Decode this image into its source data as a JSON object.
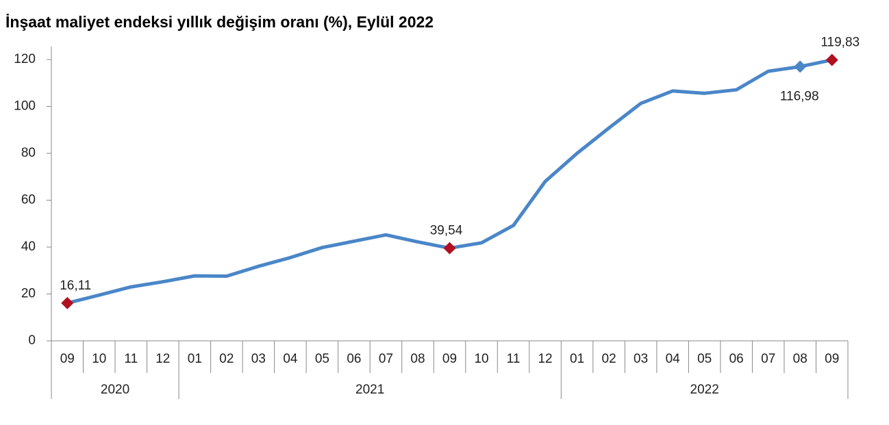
{
  "chart_data": {
    "type": "line",
    "title": "İnşaat maliyet endeksi yıllık değişim oranı (%), Eylül 2022",
    "categories": [
      "09",
      "10",
      "11",
      "12",
      "01",
      "02",
      "03",
      "04",
      "05",
      "06",
      "07",
      "08",
      "09",
      "10",
      "11",
      "12",
      "01",
      "02",
      "03",
      "04",
      "05",
      "06",
      "07",
      "08",
      "09"
    ],
    "groups": [
      "2020",
      "2021",
      "2022"
    ],
    "series": [
      {
        "name": "Yıllık değişim",
        "color": "#4a86c8",
        "values": [
          16.11,
          19.5,
          23,
          25.2,
          27.7,
          27.6,
          31.8,
          35.5,
          39.8,
          42.5,
          45.2,
          42.2,
          39.54,
          41.8,
          49.2,
          68,
          80,
          90.8,
          101.3,
          106.6,
          105.6,
          107.1,
          115,
          116.98,
          119.83
        ],
        "value_labels": [
          "16,11",
          null,
          null,
          null,
          null,
          null,
          null,
          null,
          null,
          null,
          null,
          null,
          "39,54",
          null,
          null,
          null,
          null,
          null,
          null,
          null,
          null,
          null,
          null,
          "116,98",
          "119,83"
        ],
        "marker_colors": [
          "#b0101f",
          null,
          null,
          null,
          null,
          null,
          null,
          null,
          null,
          null,
          null,
          null,
          "#b0101f",
          null,
          null,
          null,
          null,
          null,
          null,
          null,
          null,
          null,
          null,
          "#4a86c8",
          "#b0101f"
        ]
      }
    ],
    "ylim": [
      0,
      120
    ],
    "yticks": [
      0,
      20,
      40,
      60,
      80,
      100,
      120
    ],
    "grid": false
  }
}
